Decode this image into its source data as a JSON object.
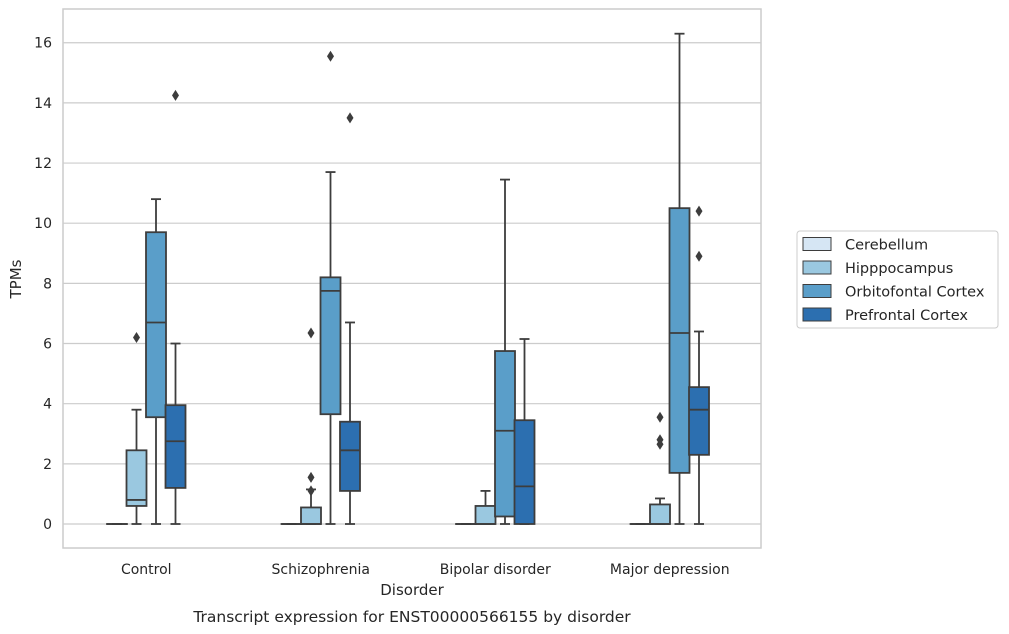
{
  "chart_data": {
    "type": "box",
    "caption": "Transcript expression for ENST00000566155 by disorder",
    "xlabel": "Disorder",
    "ylabel": "TPMs",
    "ylim": [
      -0.75,
      17.1
    ],
    "yticks": [
      0,
      2,
      4,
      6,
      8,
      10,
      12,
      14,
      16
    ],
    "grid": "horizontal",
    "legend_position": "right",
    "categories": [
      "Control",
      "Schizophrenia",
      "Bipolar disorder",
      "Major depression"
    ],
    "series": [
      {
        "name": "Cerebellum",
        "color": "#d6e6f4",
        "boxes": [
          {
            "whislo": 0,
            "q1": 0,
            "med": 0,
            "q3": 0,
            "whishi": 0,
            "fliers": []
          },
          {
            "whislo": 0,
            "q1": 0,
            "med": 0,
            "q3": 0,
            "whishi": 0,
            "fliers": []
          },
          {
            "whislo": 0,
            "q1": 0,
            "med": 0,
            "q3": 0,
            "whishi": 0,
            "fliers": []
          },
          {
            "whislo": 0,
            "q1": 0,
            "med": 0,
            "q3": 0,
            "whishi": 0,
            "fliers": []
          }
        ]
      },
      {
        "name": "Hipppocampus",
        "color": "#9ac8e0",
        "boxes": [
          {
            "whislo": 0,
            "q1": 0.6,
            "med": 0.8,
            "q3": 2.45,
            "whishi": 3.8,
            "fliers": [
              6.2
            ]
          },
          {
            "whislo": 0,
            "q1": 0,
            "med": 0,
            "q3": 0.55,
            "whishi": 1.15,
            "fliers": [
              1.1,
              1.55,
              6.35
            ]
          },
          {
            "whislo": 0,
            "q1": 0,
            "med": 0,
            "q3": 0.6,
            "whishi": 1.1,
            "fliers": []
          },
          {
            "whislo": 0,
            "q1": 0,
            "med": 0,
            "q3": 0.65,
            "whishi": 0.85,
            "fliers": [
              2.65,
              2.8,
              3.55
            ]
          }
        ]
      },
      {
        "name": "Orbitofontal Cortex",
        "color": "#5a9ec9",
        "boxes": [
          {
            "whislo": 0,
            "q1": 3.55,
            "med": 6.7,
            "q3": 9.7,
            "whishi": 10.8,
            "fliers": []
          },
          {
            "whislo": 0,
            "q1": 3.65,
            "med": 7.75,
            "q3": 8.2,
            "whishi": 11.7,
            "fliers": [
              15.55
            ]
          },
          {
            "whislo": 0,
            "q1": 0.25,
            "med": 3.1,
            "q3": 5.75,
            "whishi": 11.45,
            "fliers": []
          },
          {
            "whislo": 0,
            "q1": 1.7,
            "med": 6.35,
            "q3": 10.5,
            "whishi": 16.3,
            "fliers": []
          }
        ]
      },
      {
        "name": "Prefrontal Cortex",
        "color": "#2c6fb0",
        "boxes": [
          {
            "whislo": 0,
            "q1": 1.2,
            "med": 2.75,
            "q3": 3.95,
            "whishi": 6.0,
            "fliers": [
              14.25
            ]
          },
          {
            "whislo": 0,
            "q1": 1.1,
            "med": 2.45,
            "q3": 3.4,
            "whishi": 6.7,
            "fliers": [
              13.5
            ]
          },
          {
            "whislo": 0,
            "q1": 0,
            "med": 1.25,
            "q3": 3.45,
            "whishi": 6.15,
            "fliers": []
          },
          {
            "whislo": 0,
            "q1": 2.3,
            "med": 3.8,
            "q3": 4.55,
            "whishi": 6.4,
            "fliers": [
              8.9,
              10.4
            ]
          }
        ]
      }
    ]
  }
}
